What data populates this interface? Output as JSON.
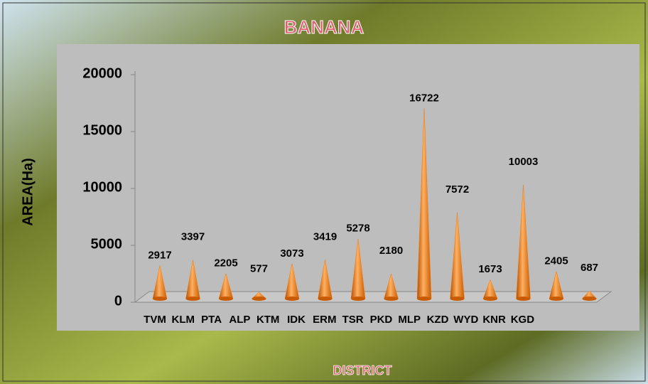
{
  "chart_data": {
    "type": "cone",
    "title": "BANANA",
    "x_label": "DISTRICT",
    "y_label": "AREA(Ha)",
    "categories": [
      "TVM",
      "KLM",
      "PTA",
      "ALP",
      "KTM",
      "IDK",
      "ERM",
      "TSR",
      "PKD",
      "MLP",
      "KZD",
      "WYD",
      "KNR",
      "KGD"
    ],
    "values": [
      2917,
      3397,
      2205,
      577,
      3073,
      3419,
      5278,
      2180,
      16722,
      7572,
      1673,
      10003,
      2405,
      687
    ],
    "color": "#f07a10",
    "ylim": [
      0,
      20000
    ],
    "yticks": [
      0,
      5000,
      10000,
      15000,
      20000
    ]
  }
}
